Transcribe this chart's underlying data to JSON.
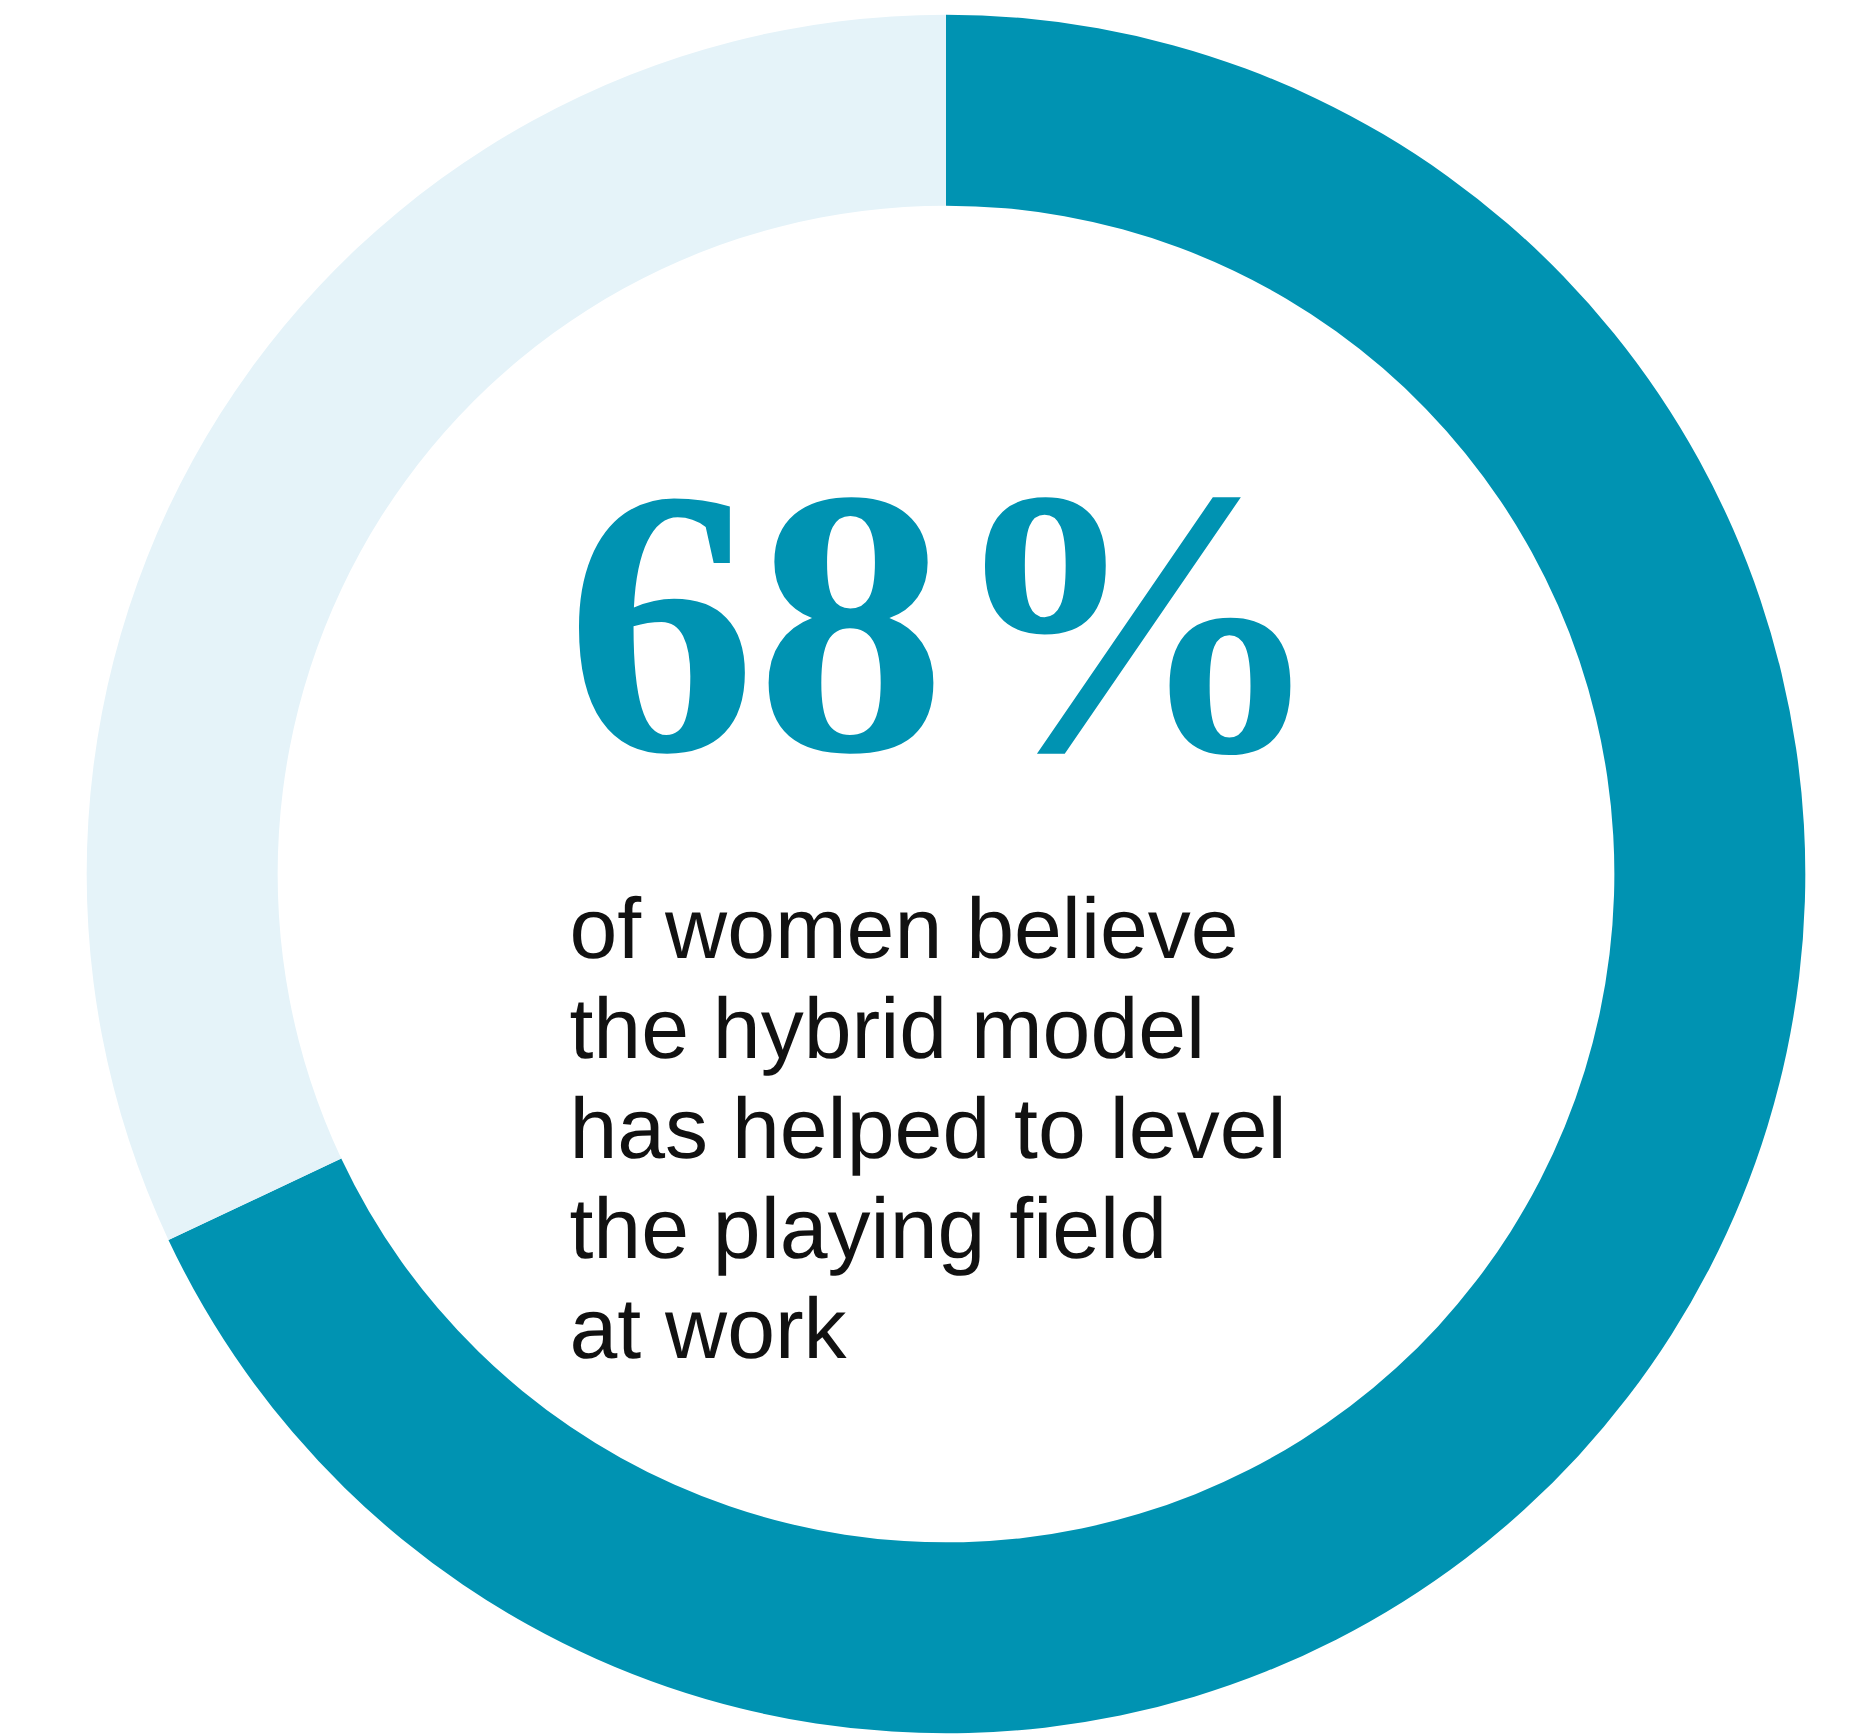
{
  "chart_data": {
    "type": "donut",
    "categories": [
      null,
      null
    ],
    "values": [
      68,
      32
    ],
    "colors": [
      "#0093b2",
      "#e5f3f9"
    ],
    "value_labels": [
      "68%",
      null
    ],
    "annotations": [
      "of women believe\nthe hybrid model\nhas helped to level\nthe playing field\nat work"
    ]
  }
}
